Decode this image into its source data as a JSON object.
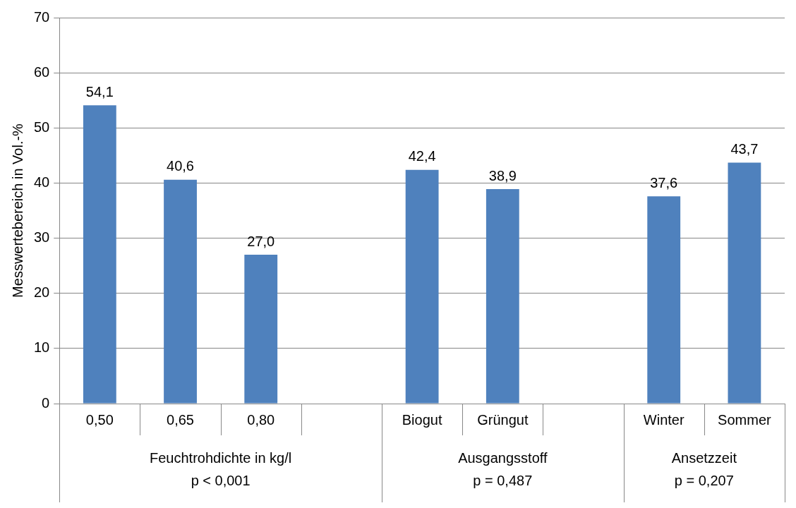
{
  "chart_data": {
    "type": "bar",
    "ylabel": "Messwertebereich in Vol.-%",
    "categories": [
      "0,50",
      "0,65",
      "0,80",
      null,
      "Biogut",
      "Grüngut",
      null,
      "Winter",
      "Sommer"
    ],
    "values": [
      54.1,
      40.6,
      27.0,
      null,
      42.4,
      38.9,
      null,
      37.6,
      43.7
    ],
    "value_labels": [
      "54,1",
      "40,6",
      "27,0",
      null,
      "42,4",
      "38,9",
      null,
      "37,6",
      "43,7"
    ],
    "color": "#4f81bd",
    "ylim": [
      0,
      70
    ],
    "yticks": [
      0,
      10,
      20,
      30,
      40,
      50,
      60,
      70
    ],
    "grid": "y",
    "legend": false,
    "annotations": [
      "Feuchtrohdichte in kg/l",
      "p < 0,001",
      "Ausgangsstoff",
      "p = 0,487",
      "Ansetzzeit",
      "p = 0,207"
    ]
  }
}
